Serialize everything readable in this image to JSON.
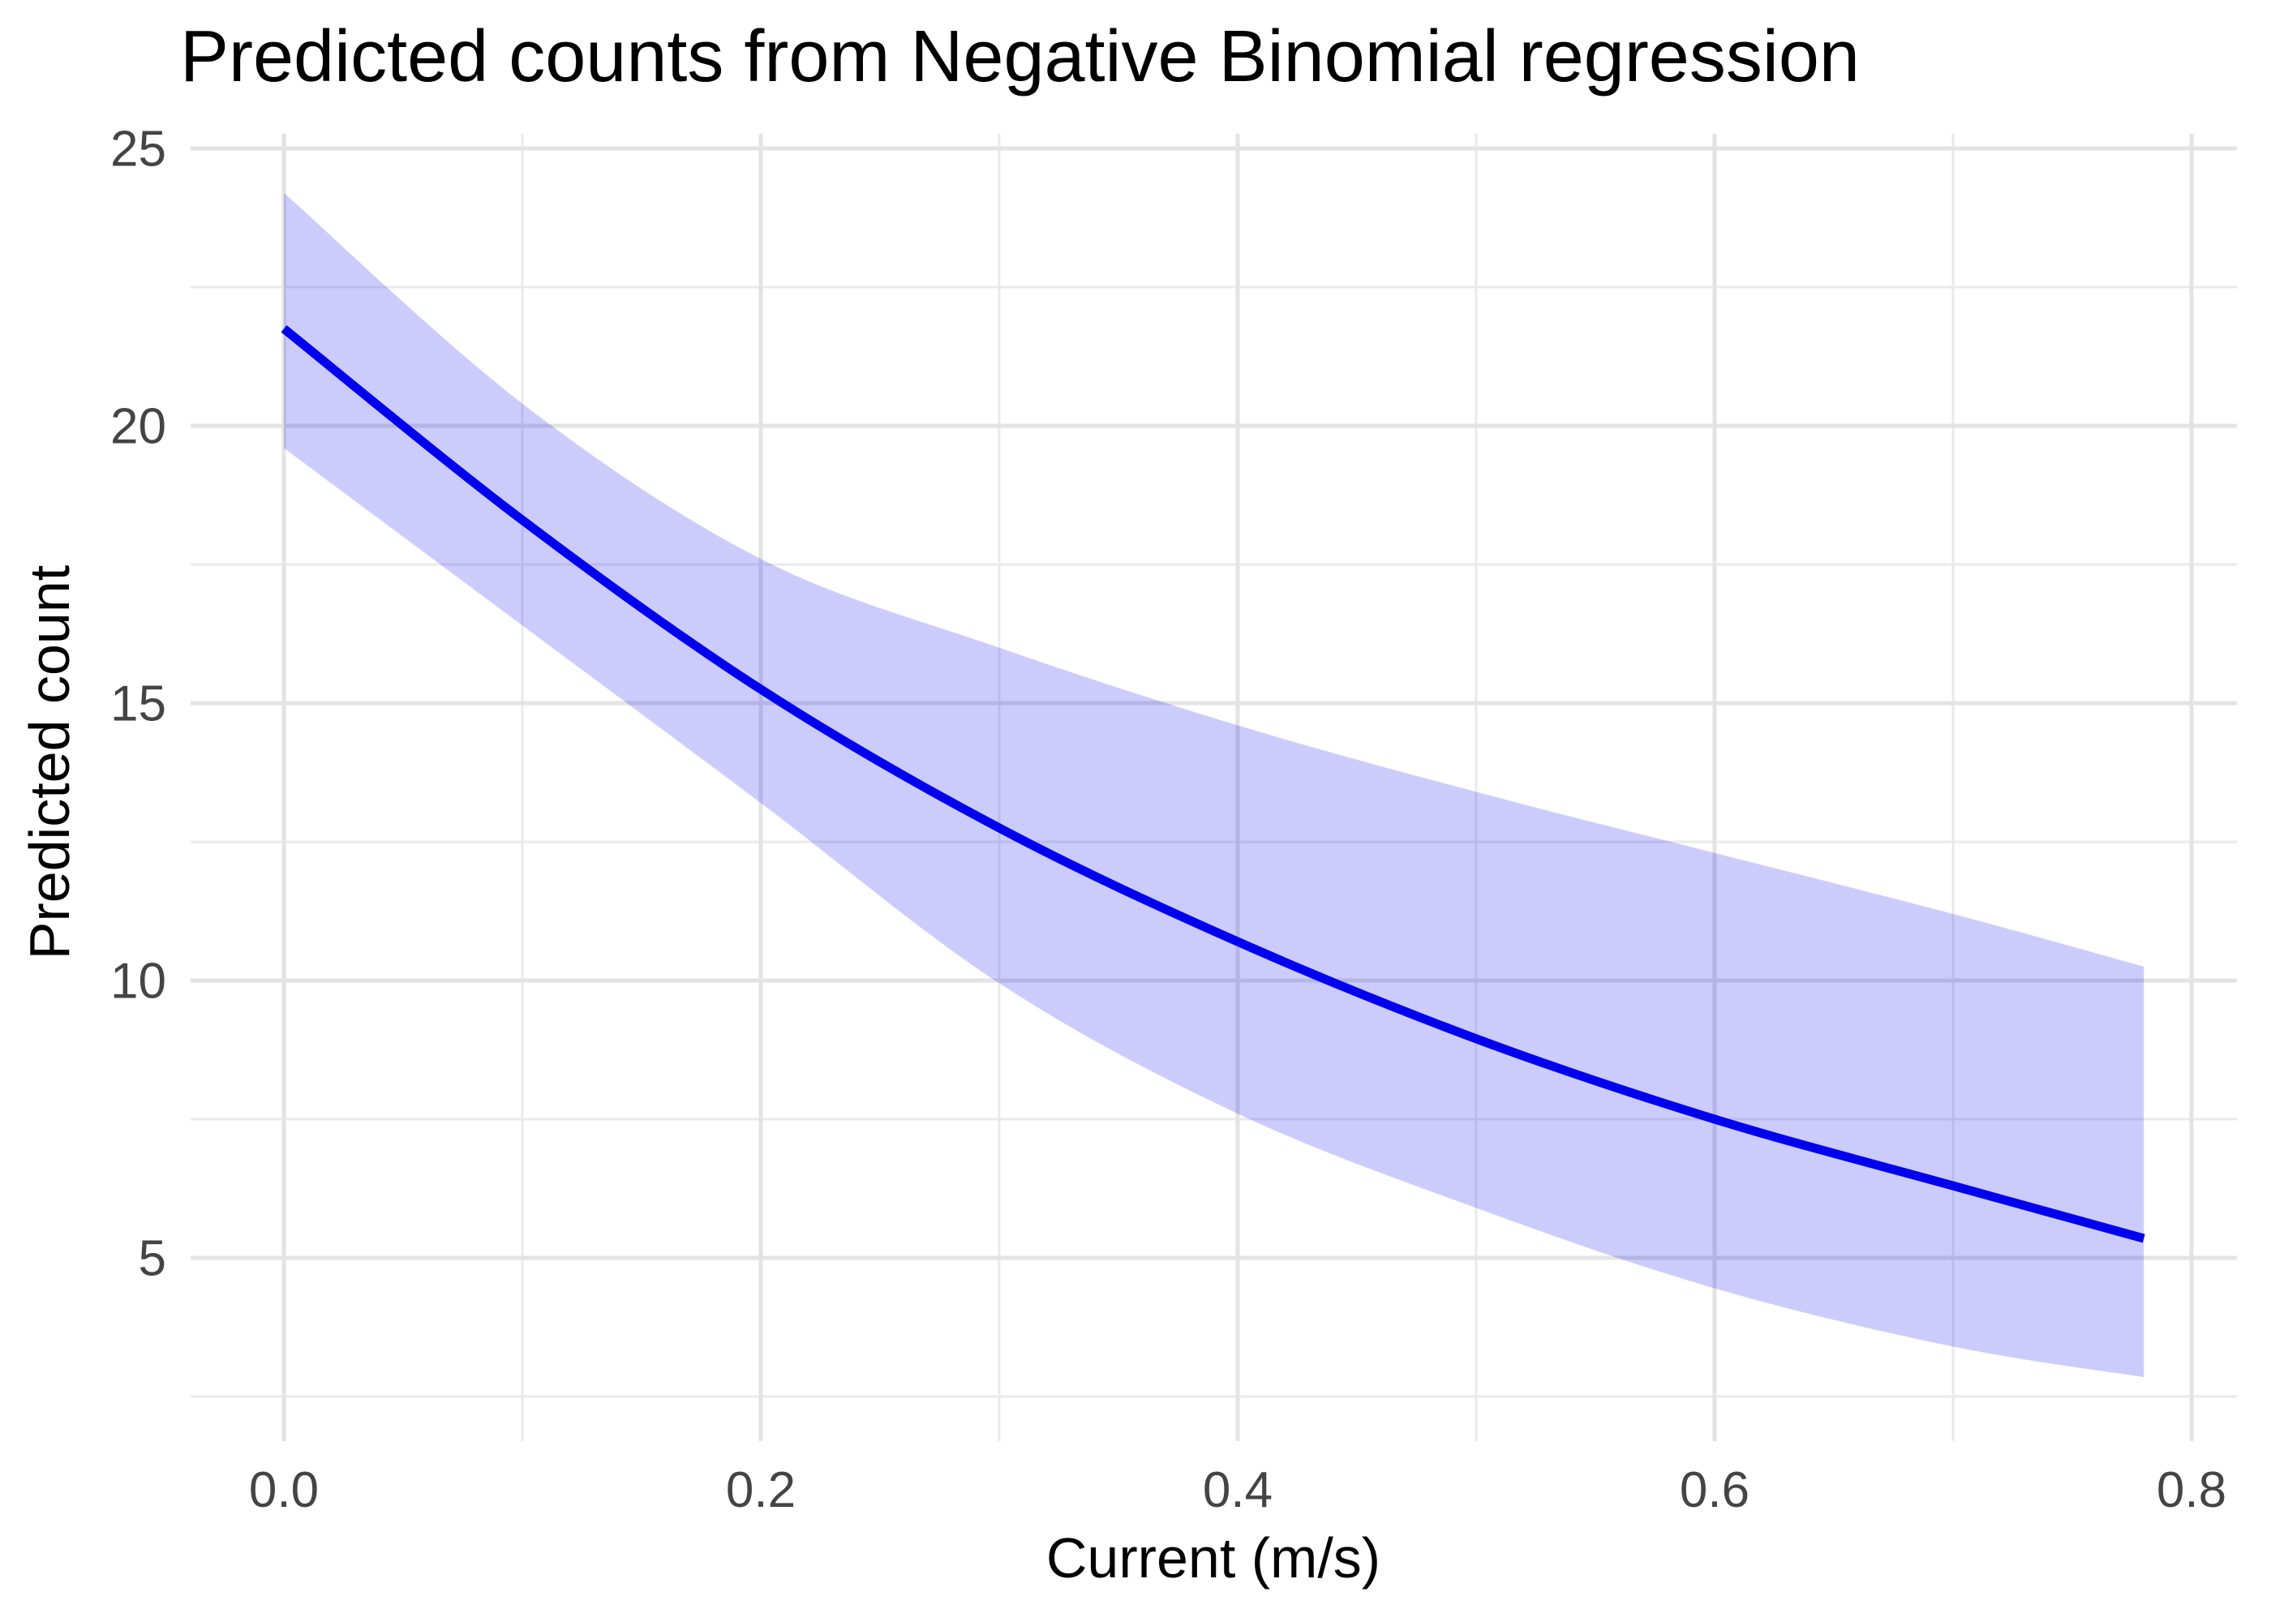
{
  "title": "Predicted counts from Negative Binomial regression",
  "x_axis": {
    "label": "Current (m/s)",
    "tick_labels": [
      "0.0",
      "0.2",
      "0.4",
      "0.6",
      "0.8"
    ],
    "tick_values": [
      0,
      0.2,
      0.4,
      0.6,
      0.8
    ],
    "minor_tick_values": [
      0.1,
      0.3,
      0.5,
      0.7
    ]
  },
  "y_axis": {
    "label": "Predicted count",
    "tick_labels": [
      "5",
      "10",
      "15",
      "20",
      "25"
    ],
    "tick_values": [
      5,
      10,
      15,
      20,
      25
    ],
    "minor_tick_values": [
      2.5,
      7.5,
      12.5,
      17.5,
      22.5
    ]
  },
  "chart_data": {
    "type": "line",
    "title": "Predicted counts from Negative Binomial regression",
    "xlabel": "Current (m/s)",
    "ylabel": "Predicted count",
    "xlim": [
      -0.04,
      0.82
    ],
    "ylim": [
      1.7,
      25.3
    ],
    "grid": true,
    "legend": "none",
    "x": [
      0,
      0.1,
      0.2,
      0.3,
      0.4,
      0.5,
      0.6,
      0.7,
      0.78
    ],
    "series": [
      {
        "name": "predicted_count_fit",
        "role": "line",
        "values": [
          21.75,
          18.3,
          15.25,
          12.75,
          10.7,
          8.95,
          7.5,
          6.3,
          5.35
        ]
      },
      {
        "name": "ci95_upper",
        "role": "ribbon-upper",
        "values": [
          24.2,
          20.4,
          17.6,
          16.0,
          14.6,
          13.4,
          12.3,
          11.2,
          10.25
        ]
      },
      {
        "name": "ci95_lower",
        "role": "ribbon-lower",
        "values": [
          19.6,
          16.4,
          13.2,
          9.95,
          7.6,
          5.9,
          4.45,
          3.4,
          2.85
        ]
      }
    ]
  },
  "colors": {
    "line": "#0000EE",
    "ribbon_fill": "#0000EE",
    "ribbon_opacity": "0.2",
    "grid_major": "#E3E3E3",
    "grid_minor": "#EAEAEA",
    "axis_text": "#444444",
    "title_text": "#000000",
    "background": "#FFFFFF"
  }
}
